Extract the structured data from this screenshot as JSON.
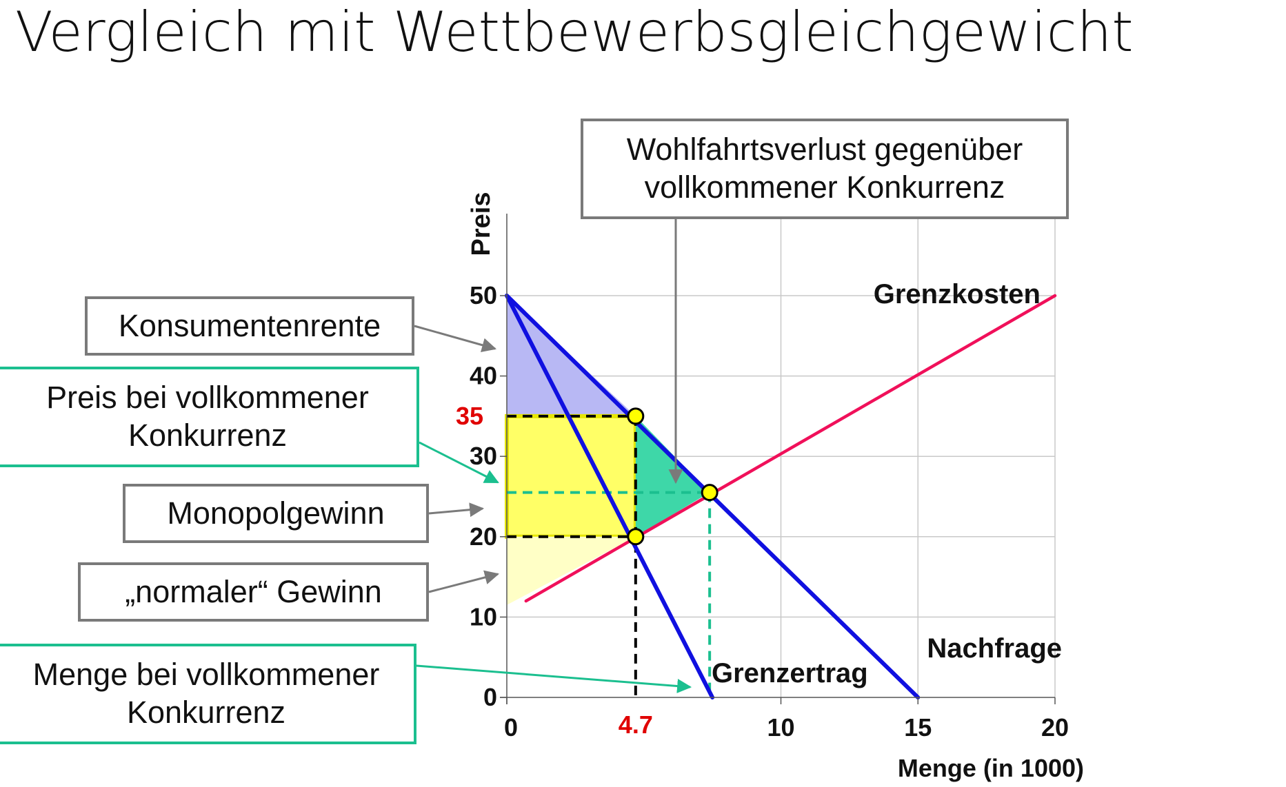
{
  "title": "Vergleich mit Wettbewerbsgleichgewicht",
  "callouts": {
    "welfare_loss": [
      "Wohlfahrtsverlust gegenüber",
      "vollkommener Konkurrenz"
    ],
    "consumer_surplus": "Konsumentenrente",
    "competitive_price": [
      "Preis bei vollkommener",
      "Konkurrenz"
    ],
    "monopoly_profit": "Monopolgewinn",
    "normal_profit": "„normaler“ Gewinn",
    "competitive_quantity": [
      "Menge bei vollkommener",
      "Konkurrenz"
    ]
  },
  "colors": {
    "demand": "#1010e0",
    "marginal_revenue": "#1010e0",
    "marginal_cost": "#f0105a",
    "consumer_surplus_fill": "#b8b8f4",
    "monopoly_profit_fill": "#ffff66",
    "normal_profit_fill": "#ffffc6",
    "welfare_loss_fill": "#3ed7a8",
    "competitive_guide": "#1bbf8f",
    "highlight_label": "#e00000",
    "point_fill": "#ffff00",
    "callout_gray": "#7a7a7a",
    "callout_green": "#1bbf8f"
  },
  "chart_data": {
    "type": "line",
    "xlabel": "Menge (in 1000)",
    "ylabel": "Preis",
    "xlim": [
      0,
      20
    ],
    "ylim": [
      0,
      60
    ],
    "x_ticks": [
      0,
      10,
      15,
      20
    ],
    "y_ticks": [
      0,
      10,
      20,
      30,
      40,
      50
    ],
    "grid": true,
    "series": [
      {
        "name": "Nachfrage",
        "x": [
          0,
          15
        ],
        "y": [
          50,
          0
        ]
      },
      {
        "name": "Grenzertrag",
        "x": [
          0,
          7.5
        ],
        "y": [
          50,
          0
        ]
      },
      {
        "name": "Grenzkosten",
        "x": [
          0.7,
          20
        ],
        "y": [
          12,
          50
        ]
      }
    ],
    "monopoly": {
      "quantity": 4.7,
      "price": 35,
      "marginal_cost": 20,
      "quantity_label": "4.7",
      "price_label": "35"
    },
    "competitive": {
      "quantity": 7.4,
      "price": 25.5
    },
    "areas": [
      {
        "label": "Konsumentenrente",
        "points": [
          [
            0,
            50
          ],
          [
            0,
            35
          ],
          [
            4.7,
            35
          ]
        ]
      },
      {
        "label": "Monopolgewinn",
        "points": [
          [
            0,
            35
          ],
          [
            4.7,
            35
          ],
          [
            4.7,
            20
          ],
          [
            0,
            20
          ]
        ]
      },
      {
        "label": "„normaler“ Gewinn",
        "points": [
          [
            0,
            20
          ],
          [
            4.7,
            20
          ],
          [
            0,
            11.5
          ]
        ]
      },
      {
        "label": "Wohlfahrtsverlust gegenüber vollkommener Konkurrenz",
        "points": [
          [
            4.7,
            35
          ],
          [
            7.4,
            25.5
          ],
          [
            4.7,
            20
          ]
        ]
      }
    ]
  }
}
